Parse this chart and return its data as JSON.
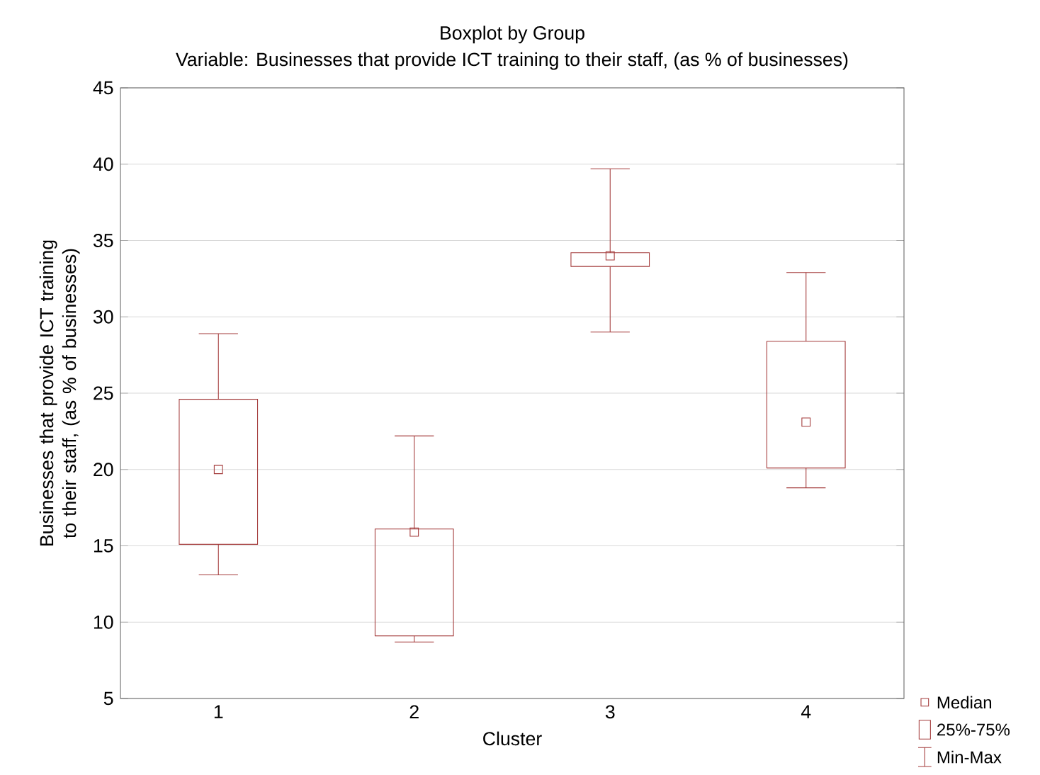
{
  "chart_data": {
    "type": "box",
    "title": "Boxplot by Group",
    "subtitle": "Variable: Businesses that provide ICT training to their staff, (as % of businesses)",
    "xlabel": "Cluster",
    "ylabel": "Businesses that provide ICT training to their staff, (as % of businesses)",
    "categories": [
      "1",
      "2",
      "3",
      "4"
    ],
    "color": "#a33a3a",
    "marker": "square",
    "boxes": [
      {
        "low": 13.1,
        "q1": 15.1,
        "median": 20.0,
        "q3": 24.6,
        "high": 28.9
      },
      {
        "low": 8.7,
        "q1": 9.1,
        "median": 15.9,
        "q3": 16.1,
        "high": 22.2
      },
      {
        "low": 29.0,
        "q1": 33.3,
        "median": 34.0,
        "q3": 34.2,
        "high": 39.7
      },
      {
        "low": 18.8,
        "q1": 20.1,
        "median": 23.1,
        "q3": 28.4,
        "high": 32.9
      }
    ],
    "ylim": [
      5,
      45
    ],
    "yticks": [
      5,
      10,
      15,
      20,
      25,
      30,
      35,
      40,
      45
    ],
    "grid": "y",
    "annotations": [
      "Median",
      "25%-75%",
      "Min-Max"
    ]
  }
}
